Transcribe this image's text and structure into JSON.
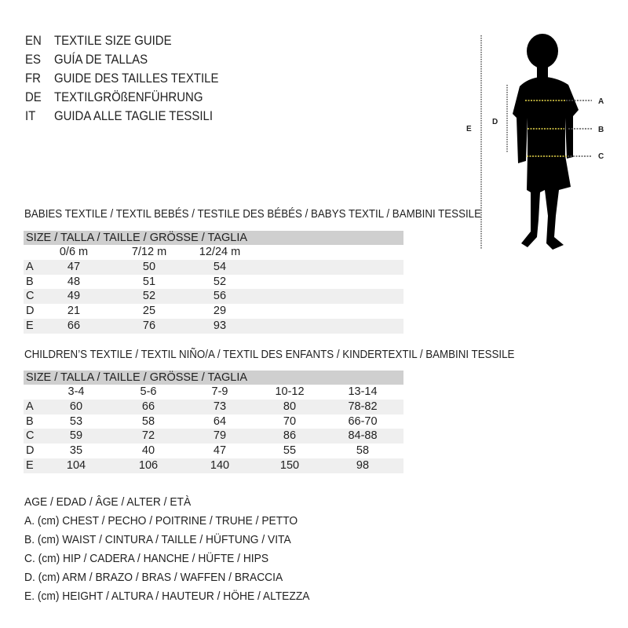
{
  "titles": [
    {
      "code": "EN",
      "text": "TEXTILE SIZE GUIDE"
    },
    {
      "code": "ES",
      "text": "GUÍA DE TALLAS"
    },
    {
      "code": "FR",
      "text": "GUIDE DES TAILLES TEXTILE"
    },
    {
      "code": "DE",
      "text": "TEXTILGRÖßENFÜHRUNG"
    },
    {
      "code": "IT",
      "text": "GUIDA ALLE TAGLIE TESSILI"
    }
  ],
  "figure": {
    "labels": {
      "A": "A",
      "B": "B",
      "C": "C",
      "D": "D",
      "E": "E"
    },
    "measure_line_color": "#e8d84a"
  },
  "babies": {
    "title": "BABIES TEXTILE / TEXTIL BEBÉS / TESTILE DES BÉBÉS / BABYS TEXTIL / BAMBINI TESSILE",
    "header": "SIZE / TALLA / TAILLE / GRÖSSE / TAGLIA",
    "columns": [
      "0/6 m",
      "7/12 m",
      "12/24 m"
    ],
    "rows": [
      {
        "label": "A",
        "values": [
          "47",
          "50",
          "54"
        ]
      },
      {
        "label": "B",
        "values": [
          "48",
          "51",
          "52"
        ]
      },
      {
        "label": "C",
        "values": [
          "49",
          "52",
          "56"
        ]
      },
      {
        "label": "D",
        "values": [
          "21",
          "25",
          "29"
        ]
      },
      {
        "label": "E",
        "values": [
          "66",
          "76",
          "93"
        ]
      }
    ]
  },
  "children": {
    "title": "CHILDREN’S TEXTILE / TEXTIL NIÑO/A / TEXTIL DES ENFANTS / KINDERTEXTIL / BAMBINI TESSILE",
    "header": "SIZE / TALLA / TAILLE / GRÖSSE / TAGLIA",
    "columns": [
      "3-4",
      "5-6",
      "7-9",
      "10-12",
      "13-14"
    ],
    "rows": [
      {
        "label": "A",
        "values": [
          "60",
          "66",
          "73",
          "80",
          "78-82"
        ]
      },
      {
        "label": "B",
        "values": [
          "53",
          "58",
          "64",
          "70",
          "66-70"
        ]
      },
      {
        "label": "C",
        "values": [
          "59",
          "72",
          "79",
          "86",
          "84-88"
        ]
      },
      {
        "label": "D",
        "values": [
          "35",
          "40",
          "47",
          "55",
          "58"
        ]
      },
      {
        "label": "E",
        "values": [
          "104",
          "106",
          "140",
          "150",
          "98"
        ]
      }
    ]
  },
  "legend": [
    "AGE / EDAD / ÂGE / ALTER / ETÀ",
    "A. (cm) CHEST / PECHO / POITRINE / TRUHE / PETTO",
    "B. (cm) WAIST / CINTURA / TAILLE / HÜFTUNG / VITA",
    "C. (cm) HIP / CADERA / HANCHE / HÜFTE / HIPS",
    "D. (cm) ARM / BRAZO / BRAS / WAFFEN / BRACCIA",
    "E. (cm) HEIGHT / ALTURA / HAUTEUR / HÖHE / ALTEZZA"
  ]
}
